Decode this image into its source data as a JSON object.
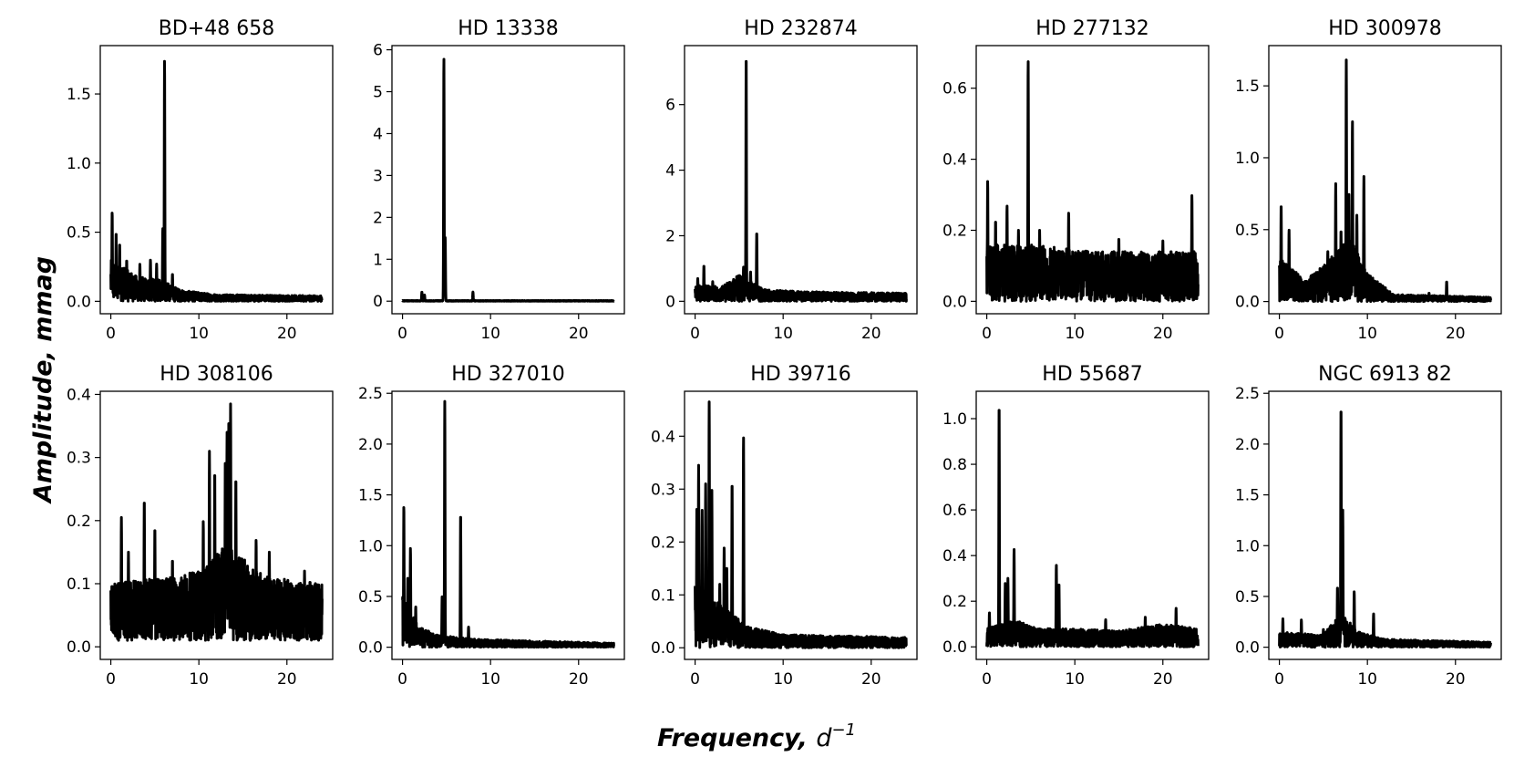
{
  "figure": {
    "ylabel": "Amplitude, mmag",
    "xlabel_main": "Frequency, ",
    "xlabel_var": "d",
    "xlabel_exp": "−1",
    "line_color": "#000000"
  },
  "chart_data": [
    {
      "type": "line",
      "title": "BD+48 658",
      "xlim": [
        -1.2,
        25.2
      ],
      "ylim": [
        -0.09,
        1.85
      ],
      "yticks": [
        0.0,
        0.5,
        1.0,
        1.5
      ],
      "ytick_labels": [
        "0.0",
        "0.5",
        "1.0",
        "1.5"
      ],
      "xticks": [
        0,
        10,
        20
      ],
      "xtick_labels": [
        "0",
        "10",
        "20"
      ],
      "series": [
        {
          "floor": 0.0,
          "noise": [
            [
              0,
              0.3
            ],
            [
              3,
              0.18
            ],
            [
              6,
              0.15
            ],
            [
              8,
              0.08
            ],
            [
              12,
              0.05
            ],
            [
              24,
              0.04
            ]
          ],
          "peaks": [
            [
              6.1,
              1.75
            ],
            [
              0.15,
              0.65
            ],
            [
              0.6,
              0.5
            ],
            [
              5.9,
              0.53
            ],
            [
              1.0,
              0.42
            ],
            [
              3.3,
              0.27
            ],
            [
              4.5,
              0.3
            ],
            [
              5.2,
              0.27
            ],
            [
              7.0,
              0.2
            ],
            [
              1.8,
              0.3
            ]
          ]
        }
      ]
    },
    {
      "type": "line",
      "title": "HD 13338",
      "xlim": [
        -1.2,
        25.2
      ],
      "ylim": [
        -0.3,
        6.1
      ],
      "yticks": [
        0,
        1,
        2,
        3,
        4,
        5,
        6
      ],
      "ytick_labels": [
        "0",
        "1",
        "2",
        "3",
        "4",
        "5",
        "6"
      ],
      "xticks": [
        0,
        10,
        20
      ],
      "xtick_labels": [
        "0",
        "10",
        "20"
      ],
      "series": [
        {
          "floor": 0.0,
          "noise": [
            [
              0,
              0.015
            ],
            [
              24,
              0.015
            ]
          ],
          "peaks": [
            [
              4.7,
              5.82
            ],
            [
              4.85,
              1.52
            ],
            [
              2.2,
              0.22
            ],
            [
              2.5,
              0.15
            ],
            [
              8.0,
              0.22
            ]
          ]
        }
      ]
    },
    {
      "type": "line",
      "title": "HD 232874",
      "xlim": [
        -1.2,
        25.2
      ],
      "ylim": [
        -0.38,
        7.8
      ],
      "yticks": [
        0,
        2,
        4,
        6
      ],
      "ytick_labels": [
        "0",
        "2",
        "4",
        "6"
      ],
      "xticks": [
        0,
        10,
        20
      ],
      "xtick_labels": [
        "0",
        "10",
        "20"
      ],
      "series": [
        {
          "floor": 0.0,
          "noise": [
            [
              0,
              0.5
            ],
            [
              3,
              0.45
            ],
            [
              5,
              0.8
            ],
            [
              8,
              0.35
            ],
            [
              12,
              0.3
            ],
            [
              24,
              0.25
            ]
          ],
          "peaks": [
            [
              5.8,
              7.55
            ],
            [
              7.0,
              2.12
            ],
            [
              5.5,
              1.05
            ],
            [
              1.0,
              1.1
            ],
            [
              0.3,
              0.7
            ],
            [
              2.0,
              0.6
            ],
            [
              6.3,
              0.9
            ],
            [
              4.0,
              0.55
            ]
          ]
        }
      ]
    },
    {
      "type": "line",
      "title": "HD 277132",
      "xlim": [
        -1.2,
        25.2
      ],
      "ylim": [
        -0.035,
        0.72
      ],
      "yticks": [
        0.0,
        0.2,
        0.4,
        0.6
      ],
      "ytick_labels": [
        "0.0",
        "0.2",
        "0.4",
        "0.6"
      ],
      "xticks": [
        0,
        10,
        20
      ],
      "xtick_labels": [
        "0",
        "10",
        "20"
      ],
      "series": [
        {
          "floor": 0.0,
          "noise": [
            [
              0,
              0.16
            ],
            [
              5,
              0.16
            ],
            [
              12,
              0.14
            ],
            [
              24,
              0.14
            ]
          ],
          "peaks": [
            [
              4.7,
              0.68
            ],
            [
              0.1,
              0.34
            ],
            [
              23.3,
              0.3
            ],
            [
              2.3,
              0.27
            ],
            [
              9.3,
              0.25
            ],
            [
              1.0,
              0.23
            ],
            [
              3.6,
              0.2
            ],
            [
              6.0,
              0.2
            ],
            [
              15.0,
              0.18
            ],
            [
              20.0,
              0.17
            ]
          ]
        }
      ]
    },
    {
      "type": "line",
      "title": "HD 300978",
      "xlim": [
        -1.2,
        25.2
      ],
      "ylim": [
        -0.085,
        1.78
      ],
      "yticks": [
        0.0,
        0.5,
        1.0,
        1.5
      ],
      "ytick_labels": [
        "0.0",
        "0.5",
        "1.0",
        "1.5"
      ],
      "xticks": [
        0,
        10,
        20
      ],
      "xtick_labels": [
        "0",
        "10",
        "20"
      ],
      "series": [
        {
          "floor": 0.0,
          "noise": [
            [
              0,
              0.3
            ],
            [
              3,
              0.15
            ],
            [
              5,
              0.25
            ],
            [
              8,
              0.45
            ],
            [
              10,
              0.2
            ],
            [
              13,
              0.05
            ],
            [
              24,
              0.03
            ]
          ],
          "peaks": [
            [
              7.6,
              1.68
            ],
            [
              8.3,
              1.26
            ],
            [
              9.6,
              0.87
            ],
            [
              6.4,
              0.82
            ],
            [
              0.2,
              0.68
            ],
            [
              7.9,
              0.75
            ],
            [
              1.1,
              0.5
            ],
            [
              7.0,
              0.5
            ],
            [
              5.5,
              0.35
            ],
            [
              8.8,
              0.6
            ],
            [
              19.0,
              0.14
            ],
            [
              17.0,
              0.06
            ]
          ]
        }
      ]
    },
    {
      "type": "line",
      "title": "HD 308106",
      "xlim": [
        -1.2,
        25.2
      ],
      "ylim": [
        -0.02,
        0.405
      ],
      "yticks": [
        0.0,
        0.1,
        0.2,
        0.3,
        0.4
      ],
      "ytick_labels": [
        "0.0",
        "0.1",
        "0.2",
        "0.3",
        "0.4"
      ],
      "xticks": [
        0,
        10,
        20
      ],
      "xtick_labels": [
        "0",
        "10",
        "20"
      ],
      "series": [
        {
          "floor": 0.01,
          "noise": [
            [
              0,
              0.09
            ],
            [
              6,
              0.1
            ],
            [
              10,
              0.11
            ],
            [
              13,
              0.15
            ],
            [
              15,
              0.13
            ],
            [
              18,
              0.1
            ],
            [
              24,
              0.09
            ]
          ],
          "peaks": [
            [
              13.6,
              0.385
            ],
            [
              13.4,
              0.365
            ],
            [
              13.2,
              0.34
            ],
            [
              11.2,
              0.31
            ],
            [
              11.8,
              0.28
            ],
            [
              13.0,
              0.3
            ],
            [
              3.8,
              0.235
            ],
            [
              1.2,
              0.205
            ],
            [
              14.2,
              0.27
            ],
            [
              5.0,
              0.19
            ],
            [
              10.5,
              0.2
            ],
            [
              16.5,
              0.17
            ],
            [
              18.0,
              0.15
            ],
            [
              22.0,
              0.12
            ],
            [
              2.0,
              0.15
            ],
            [
              7.0,
              0.14
            ]
          ]
        }
      ]
    },
    {
      "type": "line",
      "title": "HD 327010",
      "xlim": [
        -1.2,
        25.2
      ],
      "ylim": [
        -0.12,
        2.52
      ],
      "yticks": [
        0.0,
        0.5,
        1.0,
        1.5,
        2.0,
        2.5
      ],
      "ytick_labels": [
        "0.0",
        "0.5",
        "1.0",
        "1.5",
        "2.0",
        "2.5"
      ],
      "xticks": [
        0,
        10,
        20
      ],
      "xtick_labels": [
        "0",
        "10",
        "20"
      ],
      "series": [
        {
          "floor": 0.0,
          "noise": [
            [
              0,
              0.5
            ],
            [
              2,
              0.2
            ],
            [
              4,
              0.12
            ],
            [
              8,
              0.08
            ],
            [
              24,
              0.04
            ]
          ],
          "peaks": [
            [
              4.8,
              2.42
            ],
            [
              0.15,
              1.4
            ],
            [
              6.6,
              1.32
            ],
            [
              0.9,
              0.98
            ],
            [
              0.6,
              0.7
            ],
            [
              4.5,
              0.5
            ],
            [
              1.5,
              0.4
            ],
            [
              7.5,
              0.2
            ]
          ]
        }
      ]
    },
    {
      "type": "line",
      "title": "HD 39716",
      "xlim": [
        -1.2,
        25.2
      ],
      "ylim": [
        -0.022,
        0.485
      ],
      "yticks": [
        0.0,
        0.1,
        0.2,
        0.3,
        0.4
      ],
      "ytick_labels": [
        "0.0",
        "0.1",
        "0.2",
        "0.3",
        "0.4"
      ],
      "xticks": [
        0,
        10,
        20
      ],
      "xtick_labels": [
        "0",
        "10",
        "20"
      ],
      "series": [
        {
          "floor": 0.0,
          "noise": [
            [
              0,
              0.12
            ],
            [
              3,
              0.08
            ],
            [
              6,
              0.04
            ],
            [
              10,
              0.025
            ],
            [
              24,
              0.02
            ]
          ],
          "peaks": [
            [
              1.6,
              0.465
            ],
            [
              5.5,
              0.4
            ],
            [
              0.4,
              0.345
            ],
            [
              1.2,
              0.31
            ],
            [
              4.2,
              0.315
            ],
            [
              0.2,
              0.27
            ],
            [
              1.9,
              0.3
            ],
            [
              3.3,
              0.19
            ],
            [
              0.8,
              0.26
            ],
            [
              2.8,
              0.12
            ],
            [
              3.6,
              0.15
            ]
          ]
        }
      ]
    },
    {
      "type": "line",
      "title": "HD 55687",
      "xlim": [
        -1.2,
        25.2
      ],
      "ylim": [
        -0.055,
        1.12
      ],
      "yticks": [
        0.0,
        0.2,
        0.4,
        0.6,
        0.8,
        1.0
      ],
      "ytick_labels": [
        "0.0",
        "0.2",
        "0.4",
        "0.6",
        "0.8",
        "1.0"
      ],
      "xticks": [
        0,
        10,
        20
      ],
      "xtick_labels": [
        "0",
        "10",
        "20"
      ],
      "series": [
        {
          "floor": 0.0,
          "noise": [
            [
              0,
              0.08
            ],
            [
              3,
              0.12
            ],
            [
              6,
              0.08
            ],
            [
              10,
              0.08
            ],
            [
              15,
              0.07
            ],
            [
              20,
              0.1
            ],
            [
              24,
              0.08
            ]
          ],
          "peaks": [
            [
              1.4,
              1.07
            ],
            [
              3.1,
              0.43
            ],
            [
              7.9,
              0.36
            ],
            [
              2.4,
              0.3
            ],
            [
              2.1,
              0.28
            ],
            [
              8.2,
              0.28
            ],
            [
              0.3,
              0.15
            ],
            [
              21.5,
              0.17
            ],
            [
              18.0,
              0.13
            ],
            [
              13.5,
              0.12
            ]
          ]
        }
      ]
    },
    {
      "type": "line",
      "title": "NGC 6913 82",
      "xlim": [
        -1.2,
        25.2
      ],
      "ylim": [
        -0.12,
        2.52
      ],
      "yticks": [
        0.0,
        0.5,
        1.0,
        1.5,
        2.0,
        2.5
      ],
      "ytick_labels": [
        "0.0",
        "0.5",
        "1.0",
        "1.5",
        "2.0",
        "2.5"
      ],
      "xticks": [
        0,
        10,
        20
      ],
      "xtick_labels": [
        "0",
        "10",
        "20"
      ],
      "series": [
        {
          "floor": 0.0,
          "noise": [
            [
              0,
              0.15
            ],
            [
              5,
              0.12
            ],
            [
              7,
              0.35
            ],
            [
              9,
              0.15
            ],
            [
              12,
              0.08
            ],
            [
              24,
              0.05
            ]
          ],
          "peaks": [
            [
              7.0,
              2.39
            ],
            [
              7.2,
              1.35
            ],
            [
              8.5,
              0.55
            ],
            [
              10.7,
              0.33
            ],
            [
              2.5,
              0.27
            ],
            [
              0.4,
              0.28
            ],
            [
              6.6,
              0.6
            ],
            [
              5.0,
              0.18
            ]
          ]
        }
      ]
    }
  ]
}
